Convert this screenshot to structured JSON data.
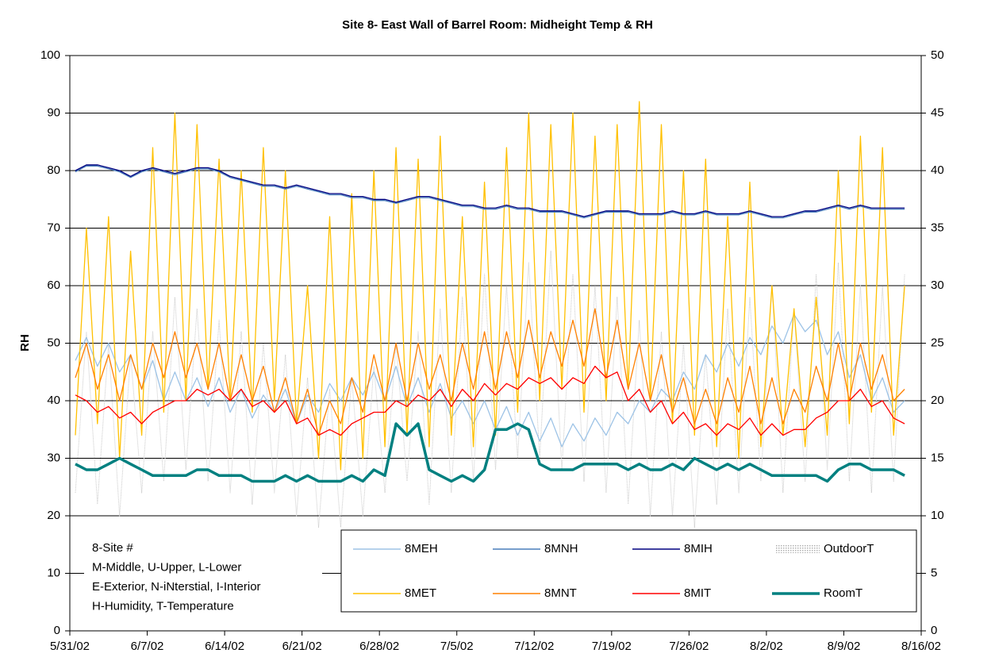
{
  "chart_data": {
    "type": "line",
    "title": "Site 8- East Wall of Barrel Room: Midheight Temp & RH",
    "y_label": "RH",
    "annotation": [
      "8-Site #",
      "M-Middle, U-Upper, L-Lower",
      "E-Exterior, N-iNterstial, I-Interior",
      "H-Humidity, T-Temperature"
    ],
    "xlim": [
      0,
      77
    ],
    "xticks": [
      {
        "value": 0,
        "label": "5/31/02"
      },
      {
        "value": 7,
        "label": "6/7/02"
      },
      {
        "value": 14,
        "label": "6/14/02"
      },
      {
        "value": 21,
        "label": "6/21/02"
      },
      {
        "value": 28,
        "label": "6/28/02"
      },
      {
        "value": 35,
        "label": "7/5/02"
      },
      {
        "value": 42,
        "label": "7/12/02"
      },
      {
        "value": 49,
        "label": "7/19/02"
      },
      {
        "value": 56,
        "label": "7/26/02"
      },
      {
        "value": 63,
        "label": "8/2/02"
      },
      {
        "value": 70,
        "label": "8/9/02"
      },
      {
        "value": 77,
        "label": "8/16/02"
      }
    ],
    "ylim": [
      0,
      100
    ],
    "yticks": [
      0,
      10,
      20,
      30,
      40,
      50,
      60,
      70,
      80,
      90,
      100
    ],
    "y2lim": [
      0,
      50
    ],
    "y2ticks": [
      0,
      5,
      10,
      15,
      20,
      25,
      30,
      35,
      40,
      45,
      50
    ],
    "grid": true,
    "x": [
      0.5,
      1.5,
      2.5,
      3.5,
      4.5,
      5.5,
      6.5,
      7.5,
      8.5,
      9.5,
      10.5,
      11.5,
      12.5,
      13.5,
      14.5,
      15.5,
      16.5,
      17.5,
      18.5,
      19.5,
      20.5,
      21.5,
      22.5,
      23.5,
      24.5,
      25.5,
      26.5,
      27.5,
      28.5,
      29.5,
      30.5,
      31.5,
      32.5,
      33.5,
      34.5,
      35.5,
      36.5,
      37.5,
      38.5,
      39.5,
      40.5,
      41.5,
      42.5,
      43.5,
      44.5,
      45.5,
      46.5,
      47.5,
      48.5,
      49.5,
      50.5,
      51.5,
      52.5,
      53.5,
      54.5,
      55.5,
      56.5,
      57.5,
      58.5,
      59.5,
      60.5,
      61.5,
      62.5,
      63.5,
      64.5,
      65.5,
      66.5,
      67.5,
      68.5,
      69.5,
      70.5,
      71.5,
      72.5,
      73.5,
      74.5,
      75.5
    ],
    "series": [
      {
        "name": "8MEH",
        "color": "#9dc3e6",
        "values": [
          47,
          51,
          46,
          50,
          45,
          48,
          42,
          47,
          40,
          45,
          40,
          44,
          39,
          44,
          38,
          42,
          37,
          41,
          38,
          42,
          36,
          41,
          38,
          43,
          40,
          44,
          41,
          45,
          40,
          46,
          39,
          44,
          38,
          43,
          37,
          40,
          36,
          40,
          35,
          39,
          34,
          38,
          33,
          37,
          32,
          36,
          33,
          37,
          34,
          38,
          36,
          40,
          38,
          42,
          40,
          45,
          42,
          48,
          45,
          50,
          46,
          51,
          48,
          53,
          50,
          55,
          52,
          54,
          48,
          52,
          44,
          48,
          40,
          44,
          38,
          40
        ]
      },
      {
        "name": "8MNH",
        "color": "#4a7ebb",
        "values": [
          79.8,
          80.8,
          80.8,
          80.3,
          79.8,
          78.8,
          79.8,
          80.3,
          79.8,
          79.3,
          79.8,
          80.3,
          80.3,
          79.8,
          78.8,
          78.3,
          77.8,
          77.3,
          77.3,
          76.8,
          77.3,
          76.8,
          76.3,
          75.8,
          75.8,
          75.3,
          75.3,
          74.8,
          74.8,
          74.3,
          74.8,
          75.3,
          75.3,
          74.8,
          74.3,
          73.8,
          73.8,
          73.3,
          73.3,
          73.8,
          73.3,
          73.3,
          72.8,
          72.8,
          72.8,
          72.3,
          71.8,
          72.3,
          72.8,
          72.8,
          72.8,
          72.3,
          72.3,
          72.3,
          72.8,
          72.3,
          72.3,
          72.8,
          72.3,
          72.3,
          72.3,
          72.8,
          72.3,
          71.8,
          71.8,
          72.3,
          72.8,
          72.8,
          73.3,
          73.8,
          73.3,
          73.8,
          73.3,
          73.3,
          73.3,
          73.3
        ]
      },
      {
        "name": "8MIH",
        "color": "#000080",
        "values": [
          80,
          81,
          81,
          80.5,
          80,
          79,
          80,
          80.5,
          80,
          79.5,
          80,
          80.5,
          80.5,
          80,
          79,
          78.5,
          78,
          77.5,
          77.5,
          77,
          77.5,
          77,
          76.5,
          76,
          76,
          75.5,
          75.5,
          75,
          75,
          74.5,
          75,
          75.5,
          75.5,
          75,
          74.5,
          74,
          74,
          73.5,
          73.5,
          74,
          73.5,
          73.5,
          73,
          73,
          73,
          72.5,
          72,
          72.5,
          73,
          73,
          73,
          72.5,
          72.5,
          72.5,
          73,
          72.5,
          72.5,
          73,
          72.5,
          72.5,
          72.5,
          73,
          72.5,
          72,
          72,
          72.5,
          73,
          73,
          73.5,
          74,
          73.5,
          74,
          73.5,
          73.5,
          73.5,
          73.5
        ]
      },
      {
        "name": "OutdoorT",
        "color": "#c8c8c8",
        "axis": "y2",
        "values": [
          12,
          26,
          11,
          25,
          10,
          24,
          12,
          26,
          13,
          29,
          14,
          28,
          13,
          27,
          12,
          26,
          11,
          25,
          12,
          24,
          10,
          22,
          9,
          21,
          9,
          22,
          10,
          23,
          12,
          25,
          13,
          26,
          11,
          28,
          12,
          29,
          13,
          31,
          14,
          30,
          15,
          32,
          15,
          33,
          14,
          31,
          13,
          30,
          12,
          29,
          11,
          27,
          10,
          26,
          10,
          25,
          9,
          24,
          11,
          28,
          12,
          29,
          13,
          30,
          12,
          28,
          13,
          31,
          14,
          32,
          13,
          30,
          12,
          30,
          13,
          31
        ]
      },
      {
        "name": "8MET",
        "color": "#ffc000",
        "axis": "y2",
        "values": [
          17,
          35,
          18,
          36,
          15,
          33,
          17,
          42,
          19,
          45,
          20,
          44,
          21,
          41,
          20,
          40,
          19,
          42,
          20,
          40,
          18,
          30,
          15,
          36,
          14,
          38,
          15,
          40,
          16,
          42,
          17,
          41,
          16,
          43,
          17,
          36,
          16,
          39,
          17,
          42,
          19,
          45,
          20,
          44,
          21,
          45,
          19,
          43,
          20,
          44,
          21,
          46,
          20,
          44,
          18,
          40,
          17,
          41,
          16,
          36,
          15,
          39,
          16,
          30,
          17,
          28,
          16,
          29,
          17,
          40,
          18,
          43,
          19,
          42,
          17,
          30
        ]
      },
      {
        "name": "8MNT",
        "color": "#ff8000",
        "axis": "y2",
        "values": [
          22,
          25,
          21,
          24,
          20,
          24,
          21,
          25,
          22,
          26,
          22,
          25,
          21,
          25,
          20,
          24,
          20,
          23,
          19,
          22,
          18,
          21,
          17,
          20,
          18,
          22,
          19,
          24,
          20,
          25,
          20,
          25,
          21,
          24,
          20,
          25,
          21,
          26,
          21,
          26,
          22,
          27,
          22,
          26,
          23,
          27,
          23,
          28,
          22,
          27,
          21,
          25,
          20,
          24,
          19,
          22,
          18,
          21,
          18,
          22,
          19,
          23,
          18,
          22,
          18,
          21,
          19,
          23,
          20,
          25,
          20,
          25,
          21,
          24,
          20,
          21
        ]
      },
      {
        "name": "8MIT",
        "color": "#ff0000",
        "axis": "y2",
        "values": [
          20.5,
          20,
          19,
          19.5,
          18.5,
          19,
          18,
          19,
          19.5,
          20,
          20,
          21,
          20.5,
          21,
          20,
          21,
          19.5,
          20,
          19,
          20,
          18,
          18.5,
          17,
          17.5,
          17,
          18,
          18.5,
          19,
          19,
          20,
          19.5,
          20.5,
          20,
          21,
          19.5,
          21,
          20,
          21.5,
          20.5,
          21.5,
          21,
          22,
          21.5,
          22,
          21,
          22,
          21.5,
          23,
          22,
          22.5,
          20,
          21,
          19,
          20,
          18,
          19,
          17.5,
          18,
          17,
          18,
          17.5,
          18.5,
          17,
          18,
          17,
          17.5,
          17.5,
          18.5,
          19,
          20,
          20,
          21,
          19.5,
          20,
          18.5,
          18
        ]
      },
      {
        "name": "RoomT",
        "color": "#008080",
        "axis": "y2",
        "values": [
          14.5,
          14,
          14,
          14.5,
          15,
          14.5,
          14,
          13.5,
          13.5,
          13.5,
          13.5,
          14,
          14,
          13.5,
          13.5,
          13.5,
          13,
          13,
          13,
          13.5,
          13,
          13.5,
          13,
          13,
          13,
          13.5,
          13,
          14,
          13.5,
          18,
          17,
          18,
          14,
          13.5,
          13,
          13.5,
          13,
          14,
          17.5,
          17.5,
          18,
          17.5,
          14.5,
          14,
          14,
          14,
          14.5,
          14.5,
          14.5,
          14.5,
          14,
          14.5,
          14,
          14,
          14.5,
          14,
          15,
          14.5,
          14,
          14.5,
          14,
          14.5,
          14,
          13.5,
          13.5,
          13.5,
          13.5,
          13.5,
          13,
          14,
          14.5,
          14.5,
          14,
          14,
          14,
          13.5
        ]
      }
    ]
  }
}
